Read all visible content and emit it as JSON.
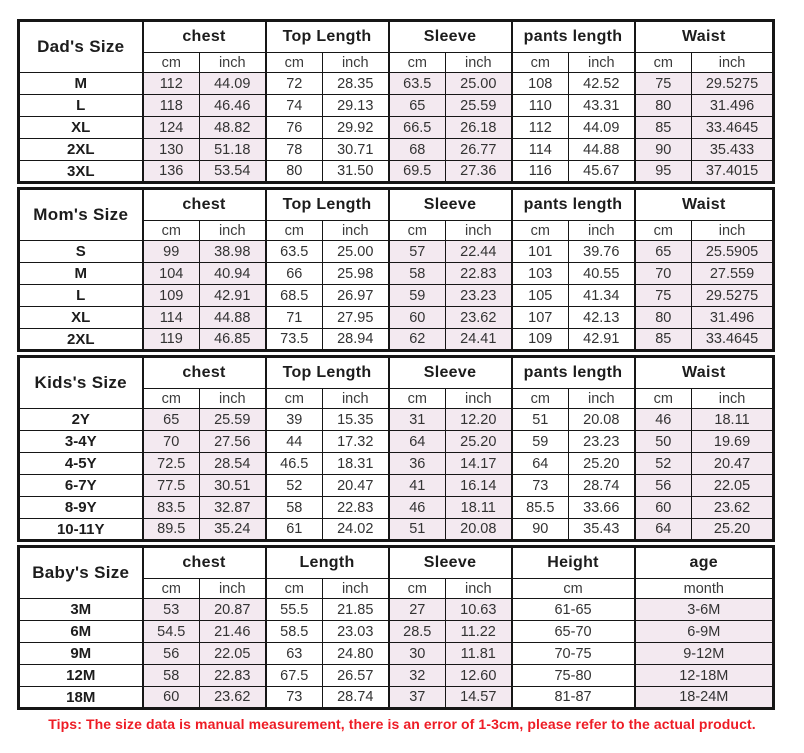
{
  "colors": {
    "row_highlight": "#f3e9f0",
    "border": "#161616",
    "tips_text": "#ee1c25"
  },
  "tips": {
    "text": "Tips: The size data is manual measurement, there is an error of 1-3cm, please refer to the actual product."
  },
  "sections": [
    {
      "id": "dad",
      "title": "Dad's Size",
      "groups": [
        {
          "label": "chest",
          "subs": [
            "cm",
            "inch"
          ],
          "shaded": true
        },
        {
          "label": "Top Length",
          "subs": [
            "cm",
            "inch"
          ],
          "shaded": false
        },
        {
          "label": "Sleeve",
          "subs": [
            "cm",
            "inch"
          ],
          "shaded": true
        },
        {
          "label": "pants length",
          "subs": [
            "cm",
            "inch"
          ],
          "shaded": false
        },
        {
          "label": "Waist",
          "subs": [
            "cm",
            "inch"
          ],
          "shaded": true
        }
      ],
      "rows": [
        {
          "size": "M",
          "values": [
            "112",
            "44.09",
            "72",
            "28.35",
            "63.5",
            "25.00",
            "108",
            "42.52",
            "75",
            "29.5275"
          ]
        },
        {
          "size": "L",
          "values": [
            "118",
            "46.46",
            "74",
            "29.13",
            "65",
            "25.59",
            "110",
            "43.31",
            "80",
            "31.496"
          ]
        },
        {
          "size": "XL",
          "values": [
            "124",
            "48.82",
            "76",
            "29.92",
            "66.5",
            "26.18",
            "112",
            "44.09",
            "85",
            "33.4645"
          ]
        },
        {
          "size": "2XL",
          "values": [
            "130",
            "51.18",
            "78",
            "30.71",
            "68",
            "26.77",
            "114",
            "44.88",
            "90",
            "35.433"
          ]
        },
        {
          "size": "3XL",
          "values": [
            "136",
            "53.54",
            "80",
            "31.50",
            "69.5",
            "27.36",
            "116",
            "45.67",
            "95",
            "37.4015"
          ]
        }
      ]
    },
    {
      "id": "mom",
      "title": "Mom's Size",
      "groups": [
        {
          "label": "chest",
          "subs": [
            "cm",
            "inch"
          ],
          "shaded": true
        },
        {
          "label": "Top Length",
          "subs": [
            "cm",
            "inch"
          ],
          "shaded": false
        },
        {
          "label": "Sleeve",
          "subs": [
            "cm",
            "inch"
          ],
          "shaded": true
        },
        {
          "label": "pants length",
          "subs": [
            "cm",
            "inch"
          ],
          "shaded": false
        },
        {
          "label": "Waist",
          "subs": [
            "cm",
            "inch"
          ],
          "shaded": true
        }
      ],
      "rows": [
        {
          "size": "S",
          "values": [
            "99",
            "38.98",
            "63.5",
            "25.00",
            "57",
            "22.44",
            "101",
            "39.76",
            "65",
            "25.5905"
          ]
        },
        {
          "size": "M",
          "values": [
            "104",
            "40.94",
            "66",
            "25.98",
            "58",
            "22.83",
            "103",
            "40.55",
            "70",
            "27.559"
          ]
        },
        {
          "size": "L",
          "values": [
            "109",
            "42.91",
            "68.5",
            "26.97",
            "59",
            "23.23",
            "105",
            "41.34",
            "75",
            "29.5275"
          ]
        },
        {
          "size": "XL",
          "values": [
            "114",
            "44.88",
            "71",
            "27.95",
            "60",
            "23.62",
            "107",
            "42.13",
            "80",
            "31.496"
          ]
        },
        {
          "size": "2XL",
          "values": [
            "119",
            "46.85",
            "73.5",
            "28.94",
            "62",
            "24.41",
            "109",
            "42.91",
            "85",
            "33.4645"
          ]
        }
      ]
    },
    {
      "id": "kids",
      "title": "Kids's Size",
      "groups": [
        {
          "label": "chest",
          "subs": [
            "cm",
            "inch"
          ],
          "shaded": true
        },
        {
          "label": "Top Length",
          "subs": [
            "cm",
            "inch"
          ],
          "shaded": false
        },
        {
          "label": "Sleeve",
          "subs": [
            "cm",
            "inch"
          ],
          "shaded": true
        },
        {
          "label": "pants length",
          "subs": [
            "cm",
            "inch"
          ],
          "shaded": false
        },
        {
          "label": "Waist",
          "subs": [
            "cm",
            "inch"
          ],
          "shaded": true
        }
      ],
      "rows": [
        {
          "size": "2Y",
          "values": [
            "65",
            "25.59",
            "39",
            "15.35",
            "31",
            "12.20",
            "51",
            "20.08",
            "46",
            "18.11"
          ]
        },
        {
          "size": "3-4Y",
          "values": [
            "70",
            "27.56",
            "44",
            "17.32",
            "64",
            "25.20",
            "59",
            "23.23",
            "50",
            "19.69"
          ]
        },
        {
          "size": "4-5Y",
          "values": [
            "72.5",
            "28.54",
            "46.5",
            "18.31",
            "36",
            "14.17",
            "64",
            "25.20",
            "52",
            "20.47"
          ]
        },
        {
          "size": "6-7Y",
          "values": [
            "77.5",
            "30.51",
            "52",
            "20.47",
            "41",
            "16.14",
            "73",
            "28.74",
            "56",
            "22.05"
          ]
        },
        {
          "size": "8-9Y",
          "values": [
            "83.5",
            "32.87",
            "58",
            "22.83",
            "46",
            "18.11",
            "85.5",
            "33.66",
            "60",
            "23.62"
          ]
        },
        {
          "size": "10-11Y",
          "values": [
            "89.5",
            "35.24",
            "61",
            "24.02",
            "51",
            "20.08",
            "90",
            "35.43",
            "64",
            "25.20"
          ]
        }
      ]
    },
    {
      "id": "baby",
      "title": "Baby's Size",
      "groups": [
        {
          "label": "chest",
          "subs": [
            "cm",
            "inch"
          ],
          "shaded": true
        },
        {
          "label": "Length",
          "subs": [
            "cm",
            "inch"
          ],
          "shaded": false
        },
        {
          "label": "Sleeve",
          "subs": [
            "cm",
            "inch"
          ],
          "shaded": true
        },
        {
          "label": "Height",
          "subs": [
            "cm"
          ],
          "shaded": false
        },
        {
          "label": "age",
          "subs": [
            "month"
          ],
          "shaded": true
        }
      ],
      "rows": [
        {
          "size": "3M",
          "values": [
            "53",
            "20.87",
            "55.5",
            "21.85",
            "27",
            "10.63",
            "61-65",
            "3-6M"
          ]
        },
        {
          "size": "6M",
          "values": [
            "54.5",
            "21.46",
            "58.5",
            "23.03",
            "28.5",
            "11.22",
            "65-70",
            "6-9M"
          ]
        },
        {
          "size": "9M",
          "values": [
            "56",
            "22.05",
            "63",
            "24.80",
            "30",
            "11.81",
            "70-75",
            "9-12M"
          ]
        },
        {
          "size": "12M",
          "values": [
            "58",
            "22.83",
            "67.5",
            "26.57",
            "32",
            "12.60",
            "75-80",
            "12-18M"
          ]
        },
        {
          "size": "18M",
          "values": [
            "60",
            "23.62",
            "73",
            "28.74",
            "37",
            "14.57",
            "81-87",
            "18-24M"
          ]
        }
      ]
    }
  ]
}
